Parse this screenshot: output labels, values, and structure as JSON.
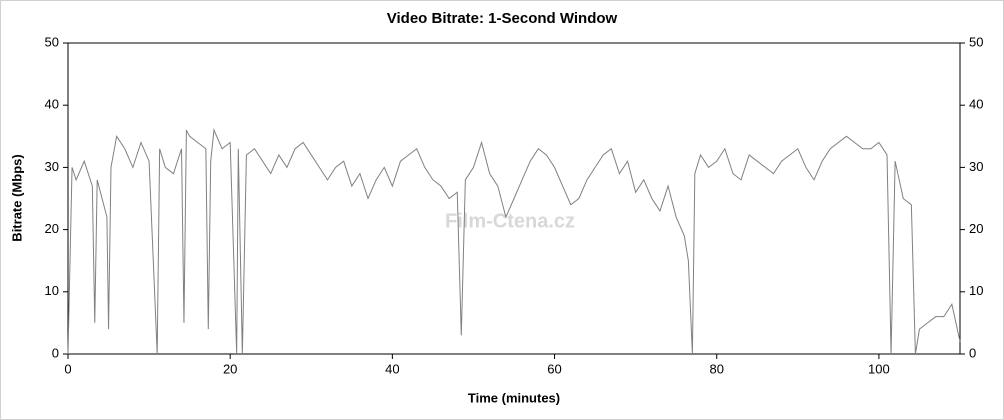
{
  "chart_data": {
    "type": "line",
    "title": "Video Bitrate: 1-Second Window",
    "x_label": "Time (minutes)",
    "y_label": "Bitrate (Mbps)",
    "watermark": "Film-Ctena.cz",
    "xlim": [
      0,
      110
    ],
    "xticks": [
      0,
      20,
      40,
      60,
      80,
      100
    ],
    "ylim": [
      0,
      50
    ],
    "yticks": [
      0,
      10,
      20,
      30,
      40,
      50
    ],
    "y2lim": [
      0,
      50
    ],
    "y2ticks": [
      0,
      10,
      20,
      30,
      40,
      50
    ],
    "series": [
      {
        "color": "#808080",
        "x": [
          0,
          0.5,
          1,
          2,
          3,
          3.3,
          3.6,
          4,
          4.8,
          5,
          5.3,
          6,
          7,
          8,
          9,
          10,
          11,
          11.3,
          12,
          13,
          14,
          14.3,
          14.6,
          15,
          16,
          17,
          17.3,
          17.6,
          18,
          19,
          20,
          20.8,
          21,
          21.5,
          22,
          23,
          24,
          25,
          26,
          27,
          28,
          29,
          30,
          31,
          32,
          33,
          34,
          35,
          36,
          37,
          38,
          39,
          40,
          41,
          42,
          43,
          44,
          45,
          46,
          47,
          48,
          48.5,
          49,
          50,
          51,
          52,
          53,
          54,
          55,
          56,
          57,
          58,
          59,
          60,
          61,
          62,
          63,
          64,
          65,
          66,
          67,
          68,
          69,
          70,
          71,
          72,
          73,
          74,
          75,
          76,
          76.5,
          77,
          77.3,
          78,
          79,
          80,
          81,
          82,
          83,
          84,
          85,
          86,
          87,
          88,
          89,
          90,
          91,
          92,
          93,
          94,
          95,
          96,
          97,
          98,
          99,
          100,
          101,
          101.5,
          102,
          103,
          104,
          104.5,
          105,
          106,
          107,
          108,
          109,
          110
        ],
        "values": [
          0,
          30,
          28,
          31,
          27,
          5,
          28,
          26,
          22,
          4,
          30,
          35,
          33,
          30,
          34,
          31,
          0,
          33,
          30,
          29,
          33,
          5,
          36,
          35,
          34,
          33,
          4,
          31,
          36,
          33,
          34,
          0,
          33,
          0,
          32,
          33,
          31,
          29,
          32,
          30,
          33,
          34,
          32,
          30,
          28,
          30,
          31,
          27,
          29,
          25,
          28,
          30,
          27,
          31,
          32,
          33,
          30,
          28,
          27,
          25,
          26,
          3,
          28,
          30,
          34,
          29,
          27,
          22,
          25,
          28,
          31,
          33,
          32,
          30,
          27,
          24,
          25,
          28,
          30,
          32,
          33,
          29,
          31,
          26,
          28,
          25,
          23,
          27,
          22,
          19,
          15,
          0,
          29,
          32,
          30,
          31,
          33,
          29,
          28,
          32,
          31,
          30,
          29,
          31,
          32,
          33,
          30,
          28,
          31,
          33,
          34,
          35,
          34,
          33,
          33,
          34,
          32,
          0,
          31,
          25,
          24,
          0,
          4,
          5,
          6,
          6,
          8,
          2
        ]
      }
    ]
  }
}
